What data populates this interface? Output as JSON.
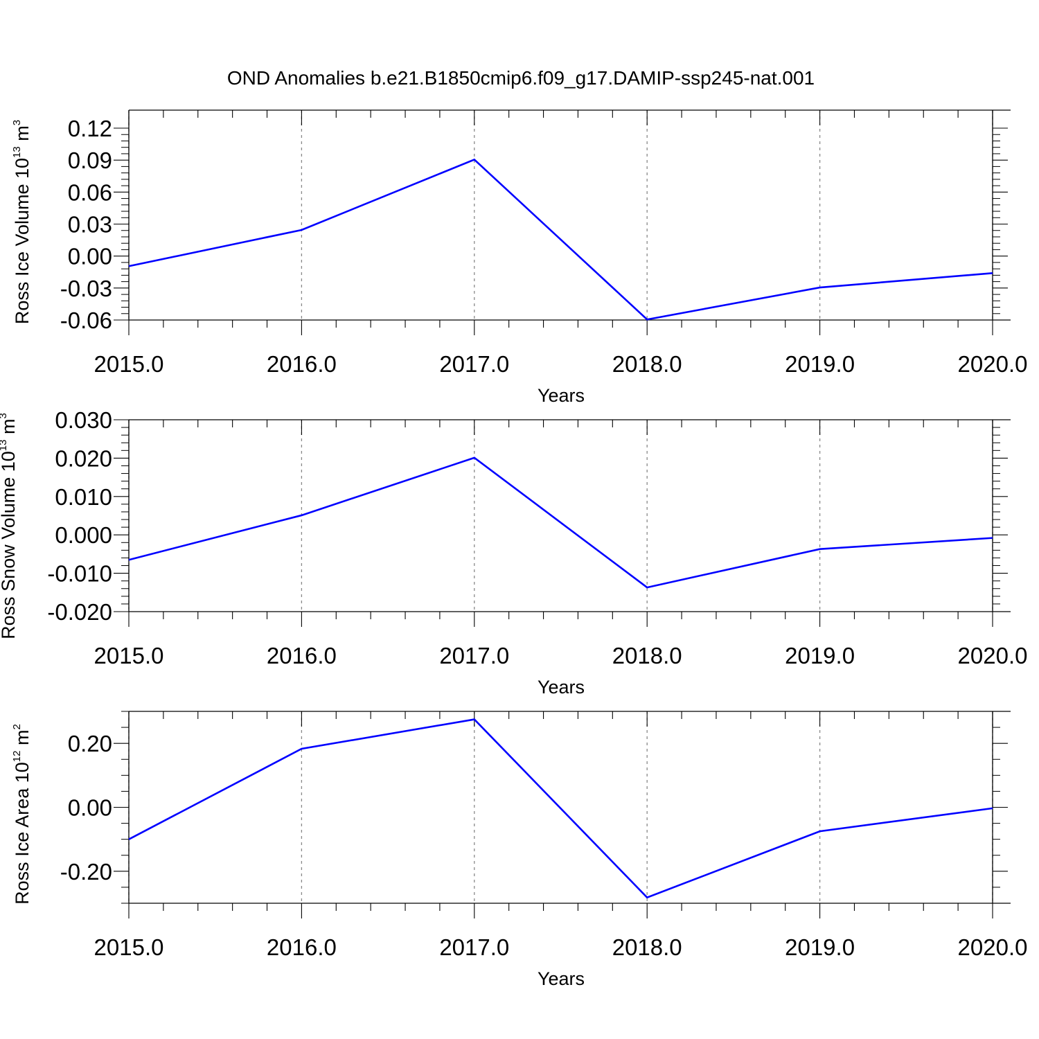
{
  "title": "OND Anomalies b.e21.B1850cmip6.f09_g17.DAMIP-ssp245-nat.001",
  "line_color": "#0000ff",
  "chart_data": [
    {
      "type": "line",
      "ylabel": {
        "text": "Ross Ice Volume 10",
        "sup": "13",
        "unit": " m",
        "unit_sup": "3"
      },
      "xlabel": "Years",
      "x": [
        2015,
        2016,
        2017,
        2018,
        2019,
        2020
      ],
      "x_tick_labels": [
        "2015.0",
        "2016.0",
        "2017.0",
        "2018.0",
        "2019.0",
        "2020.0"
      ],
      "xlim": [
        2015,
        2020
      ],
      "series": [
        {
          "values": [
            -0.0095,
            0.0245,
            0.0905,
            -0.0595,
            -0.0295,
            -0.016
          ]
        }
      ],
      "ylim": [
        -0.06,
        0.12
      ],
      "y_ticks": [
        0.12,
        0.09,
        0.06,
        0.03,
        0.0,
        -0.03,
        -0.06
      ],
      "y_tick_labels": [
        "0.12",
        "0.09",
        "0.06",
        "0.03",
        "0.00",
        "-0.03",
        "-0.06"
      ],
      "y_minor_step": 0.006,
      "grid": "vertical dashed"
    },
    {
      "type": "line",
      "ylabel": {
        "text": "Ross Snow Volume 10",
        "sup": "13",
        "unit": " m",
        "unit_sup": "3"
      },
      "xlabel": "Years",
      "x": [
        2015,
        2016,
        2017,
        2018,
        2019,
        2020
      ],
      "x_tick_labels": [
        "2015.0",
        "2016.0",
        "2017.0",
        "2018.0",
        "2019.0",
        "2020.0"
      ],
      "xlim": [
        2015,
        2020
      ],
      "series": [
        {
          "values": [
            -0.0065,
            0.0051,
            0.0201,
            -0.0137,
            -0.0037,
            -0.0008
          ]
        }
      ],
      "ylim": [
        -0.02,
        0.03
      ],
      "y_ticks": [
        0.03,
        0.02,
        0.01,
        0.0,
        -0.01,
        -0.02
      ],
      "y_tick_labels": [
        "0.030",
        "0.020",
        "0.010",
        "0.000",
        "-0.010",
        "-0.020"
      ],
      "y_minor_step": 0.002,
      "grid": "vertical dashed"
    },
    {
      "type": "line",
      "ylabel": {
        "text": "Ross Ice Area 10",
        "sup": "12",
        "unit": " m",
        "unit_sup": "2"
      },
      "xlabel": "Years",
      "x": [
        2015,
        2016,
        2017,
        2018,
        2019,
        2020
      ],
      "x_tick_labels": [
        "2015.0",
        "2016.0",
        "2017.0",
        "2018.0",
        "2019.0",
        "2020.0"
      ],
      "xlim": [
        2015,
        2020
      ],
      "series": [
        {
          "values": [
            -0.1,
            0.183,
            0.275,
            -0.282,
            -0.075,
            -0.003
          ]
        }
      ],
      "ylim": [
        -0.3,
        0.3
      ],
      "y_ticks": [
        0.2,
        0.0,
        -0.2
      ],
      "y_tick_labels": [
        "0.20",
        "0.00",
        "-0.20"
      ],
      "y_minor_step": 0.05,
      "grid": "vertical dashed"
    }
  ]
}
